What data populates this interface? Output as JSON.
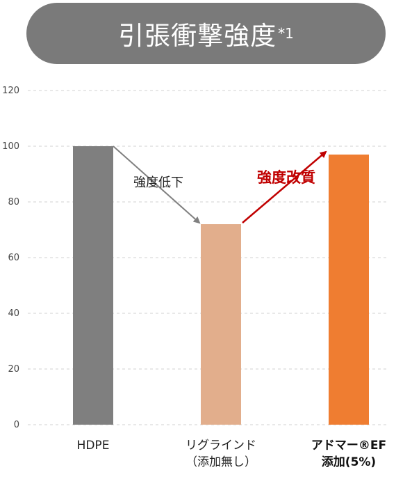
{
  "header": {
    "title": "引張衝撃強度",
    "title_sup": "*1"
  },
  "chart_data": {
    "type": "bar",
    "categories": [
      [
        "HDPE"
      ],
      [
        "リグラインド",
        "（添加無し）"
      ],
      [
        "アドマー®EF",
        "添加(5%)"
      ]
    ],
    "values": [
      100,
      72,
      97
    ],
    "colors": [
      "#7f7f7f",
      "#e2ae8c",
      "#ef7d31"
    ],
    "category_bold": [
      false,
      false,
      true
    ],
    "ylim": [
      0,
      120
    ],
    "yticks": [
      0,
      20,
      40,
      60,
      80,
      100,
      120
    ],
    "grid": true,
    "annotations": [
      {
        "text": "強度低下",
        "from": 0,
        "to": 1,
        "color": "#808080",
        "style": "normal"
      },
      {
        "text": "強度改質",
        "from": 1,
        "to": 2,
        "color": "#c00000",
        "style": "bold"
      }
    ]
  }
}
